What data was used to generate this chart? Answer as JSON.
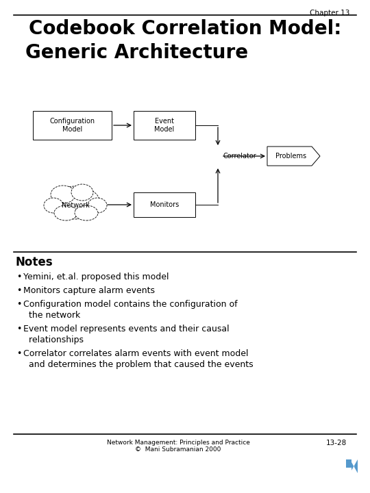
{
  "chapter_label": "Chapter 13",
  "title_line1": "Codebook Correlation Model:",
  "title_line2": "Generic Architecture",
  "bg_color": "#ffffff",
  "notes_header": "Notes",
  "bullets": [
    "Yemini, et.al. proposed this model",
    "Monitors capture alarm events",
    "Configuration model contains the configuration of\n  the network",
    "Event model represents events and their causal\n  relationships",
    "Correlator correlates alarm events with event model\n  and determines the problem that caused the events"
  ],
  "footer_left": "Network Management: Principles and Practice\n©  Mani Subramanian 2000",
  "footer_right": "13-28",
  "diagram": {
    "config_model_label": "Configuration\nModel",
    "event_model_label": "Event\nModel",
    "correlator_label": "Correlator",
    "problems_label": "Problems",
    "network_label": "Network",
    "monitors_label": "Monitors"
  }
}
